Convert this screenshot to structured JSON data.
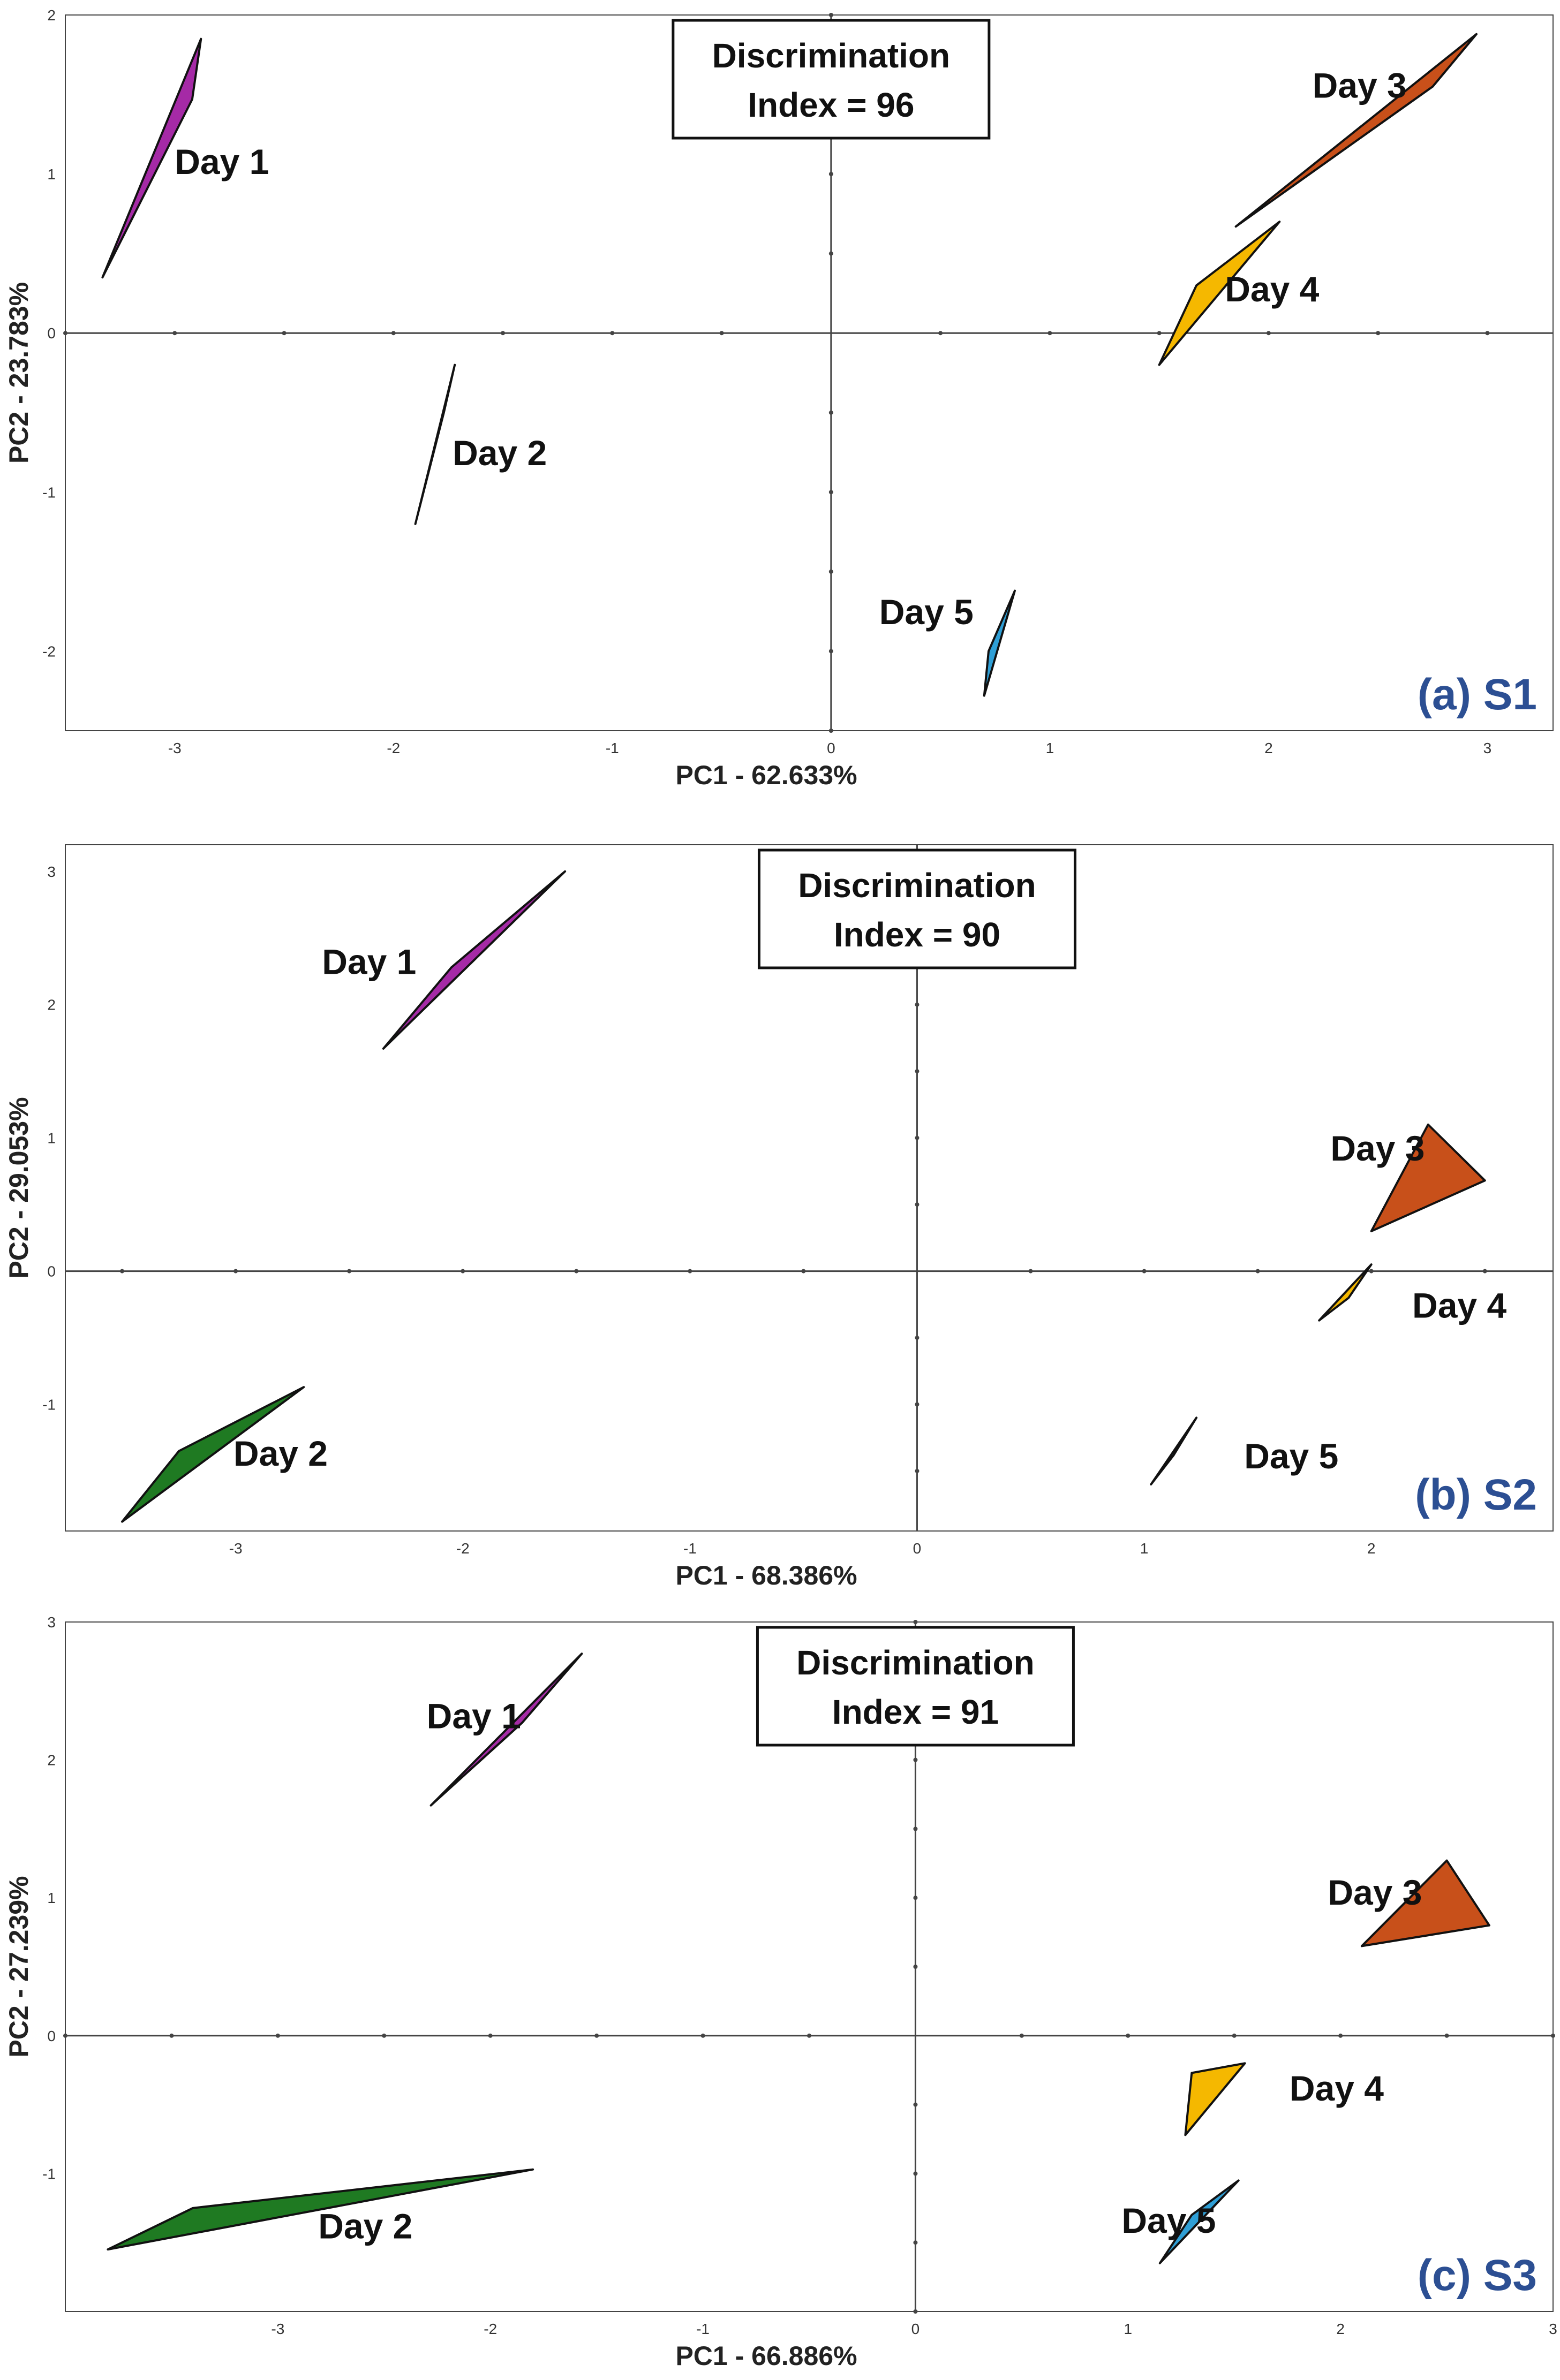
{
  "figure": "PCA score plots (a) S1, (b) S2, (c) S3",
  "colors": {
    "day1": "#a52aa6",
    "day2": "#1f7a22",
    "day3": "#c8501a",
    "day4": "#f5b800",
    "day5": "#2f9fd6",
    "panel_label": "#2c4f93",
    "axis": "#444444"
  },
  "chart_data": [
    {
      "type": "scatter",
      "panel_label": "(a) S1",
      "title": "",
      "annotation": {
        "line1": "Discrimination",
        "line2": "Index = 96"
      },
      "xlabel": "PC1 - 62.633%",
      "ylabel": "PC2 - 23.783%",
      "xlim": [
        -3.5,
        3.3
      ],
      "ylim": [
        -2.5,
        2.0
      ],
      "xticks": [
        -3,
        -2,
        -1,
        0,
        1,
        2,
        3
      ],
      "yticks": [
        -2,
        -1,
        0,
        1,
        2
      ],
      "grid": false,
      "series": [
        {
          "name": "Day 1",
          "color_key": "day1",
          "label_at": [
            -3.0,
            1.0
          ],
          "hull": [
            [
              -2.88,
              1.85
            ],
            [
              -2.92,
              1.47
            ],
            [
              -3.33,
              0.35
            ]
          ]
        },
        {
          "name": "Day 2",
          "color_key": "day2",
          "label_at": [
            -1.73,
            -0.83
          ],
          "hull": [
            [
              -1.72,
              -0.2
            ],
            [
              -1.77,
              -0.5
            ],
            [
              -1.9,
              -1.2
            ]
          ]
        },
        {
          "name": "Day 3",
          "color_key": "day3",
          "label_at": [
            2.2,
            1.48
          ],
          "hull": [
            [
              2.95,
              1.88
            ],
            [
              2.75,
              1.55
            ],
            [
              1.85,
              0.67
            ]
          ]
        },
        {
          "name": "Day 4",
          "color_key": "day4",
          "label_at": [
            1.8,
            0.2
          ],
          "hull": [
            [
              2.05,
              0.7
            ],
            [
              1.67,
              0.3
            ],
            [
              1.5,
              -0.2
            ]
          ]
        },
        {
          "name": "Day 5",
          "color_key": "day5",
          "label_at": [
            0.22,
            -1.83
          ],
          "hull": [
            [
              0.84,
              -1.62
            ],
            [
              0.72,
              -2.0
            ],
            [
              0.7,
              -2.28
            ]
          ]
        }
      ]
    },
    {
      "type": "scatter",
      "panel_label": "(b) S2",
      "title": "",
      "annotation": {
        "line1": "Discrimination",
        "line2": "Index = 90"
      },
      "xlabel": "PC1 - 68.386%",
      "ylabel": "PC2 - 29.053%",
      "xlim": [
        -3.75,
        2.8
      ],
      "ylim": [
        -1.95,
        3.2
      ],
      "xticks": [
        -3,
        -2,
        -1,
        0,
        1,
        2
      ],
      "yticks": [
        -1,
        0,
        1,
        2,
        3
      ],
      "grid": false,
      "series": [
        {
          "name": "Day 1",
          "color_key": "day1",
          "label_at": [
            -2.62,
            2.23
          ],
          "hull": [
            [
              -1.55,
              3.0
            ],
            [
              -2.05,
              2.28
            ],
            [
              -2.35,
              1.67
            ]
          ]
        },
        {
          "name": "Day 2",
          "color_key": "day2",
          "label_at": [
            -3.01,
            -1.46
          ],
          "hull": [
            [
              -2.7,
              -0.87
            ],
            [
              -3.25,
              -1.35
            ],
            [
              -3.5,
              -1.88
            ]
          ]
        },
        {
          "name": "Day 3",
          "color_key": "day3",
          "label_at": [
            1.82,
            0.83
          ],
          "hull": [
            [
              2.25,
              1.1
            ],
            [
              2.5,
              0.68
            ],
            [
              2.0,
              0.3
            ]
          ]
        },
        {
          "name": "Day 4",
          "color_key": "day4",
          "label_at": [
            2.18,
            -0.35
          ],
          "hull": [
            [
              2.0,
              0.05
            ],
            [
              1.9,
              -0.2
            ],
            [
              1.77,
              -0.37
            ]
          ]
        },
        {
          "name": "Day 5",
          "color_key": "day5",
          "label_at": [
            1.44,
            -1.48
          ],
          "hull": [
            [
              1.23,
              -1.1
            ],
            [
              1.13,
              -1.38
            ],
            [
              1.03,
              -1.6
            ]
          ]
        }
      ]
    },
    {
      "type": "scatter",
      "panel_label": "(c) S3",
      "title": "",
      "annotation": {
        "line1": "Discrimination",
        "line2": "Index = 91"
      },
      "xlabel": "PC1 - 66.886%",
      "ylabel": "PC2 - 27.239%",
      "xlim": [
        -4.0,
        3.0
      ],
      "ylim": [
        -2.0,
        3.0
      ],
      "xticks": [
        -3,
        -2,
        -1,
        0,
        1,
        2,
        3
      ],
      "yticks": [
        -1,
        0,
        1,
        2,
        3
      ],
      "grid": false,
      "series": [
        {
          "name": "Day 1",
          "color_key": "day1",
          "label_at": [
            -2.3,
            2.23
          ],
          "hull": [
            [
              -1.57,
              2.77
            ],
            [
              -1.85,
              2.27
            ],
            [
              -2.28,
              1.67
            ]
          ]
        },
        {
          "name": "Day 2",
          "color_key": "day2",
          "label_at": [
            -2.81,
            -1.47
          ],
          "hull": [
            [
              -1.8,
              -0.97
            ],
            [
              -3.4,
              -1.25
            ],
            [
              -3.8,
              -1.55
            ]
          ]
        },
        {
          "name": "Day 3",
          "color_key": "day3",
          "label_at": [
            1.94,
            0.95
          ],
          "hull": [
            [
              2.5,
              1.27
            ],
            [
              2.7,
              0.8
            ],
            [
              2.1,
              0.65
            ]
          ]
        },
        {
          "name": "Day 4",
          "color_key": "day4",
          "label_at": [
            1.76,
            -0.47
          ],
          "hull": [
            [
              1.55,
              -0.2
            ],
            [
              1.3,
              -0.27
            ],
            [
              1.27,
              -0.72
            ]
          ]
        },
        {
          "name": "Day 5",
          "color_key": "day5",
          "label_at": [
            0.97,
            -1.43
          ],
          "hull": [
            [
              1.52,
              -1.05
            ],
            [
              1.3,
              -1.3
            ],
            [
              1.15,
              -1.65
            ]
          ]
        }
      ]
    }
  ]
}
